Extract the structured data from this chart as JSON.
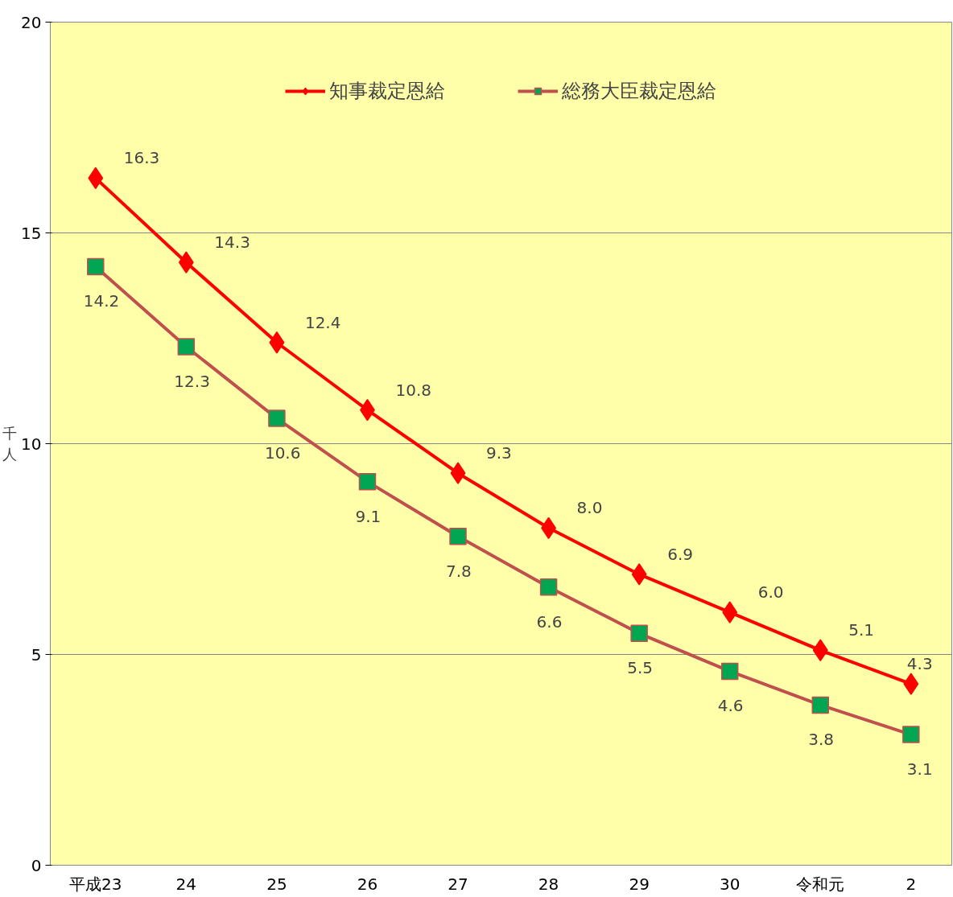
{
  "chart_data": {
    "type": "line",
    "ylabel": "千人",
    "categories": [
      "平成23",
      "24",
      "25",
      "26",
      "27",
      "28",
      "29",
      "30",
      "令和元",
      "2"
    ],
    "ylim": [
      0,
      20
    ],
    "yticks": [
      0,
      5,
      10,
      15,
      20
    ],
    "grid": "y",
    "legend": "top",
    "series": [
      {
        "name": "知事裁定恩給",
        "color": "#ff0000",
        "marker": "diamond",
        "values": [
          16.3,
          14.3,
          12.4,
          10.8,
          9.3,
          8.0,
          6.9,
          6.0,
          5.1,
          4.3
        ],
        "value_labels": [
          "16.3",
          "14.3",
          "12.4",
          "10.8",
          "9.3",
          "8.0",
          "6.9",
          "6.0",
          "5.1",
          "4.3"
        ]
      },
      {
        "name": "総務大臣裁定恩給",
        "color": "#c0504d",
        "marker": "square",
        "colors": [
          "#00a651",
          "#00a651",
          "#00a651",
          "#00a651",
          "#00a651",
          "#00a651",
          "#00a651",
          "#00a651",
          "#00a651",
          "#00a651"
        ],
        "values": [
          14.2,
          12.3,
          10.6,
          9.1,
          7.8,
          6.6,
          5.5,
          4.6,
          3.8,
          3.1
        ],
        "value_labels": [
          "14.2",
          "12.3",
          "10.6",
          "9.1",
          "7.8",
          "6.6",
          "5.5",
          "4.6",
          "3.8",
          "3.1"
        ]
      }
    ]
  }
}
